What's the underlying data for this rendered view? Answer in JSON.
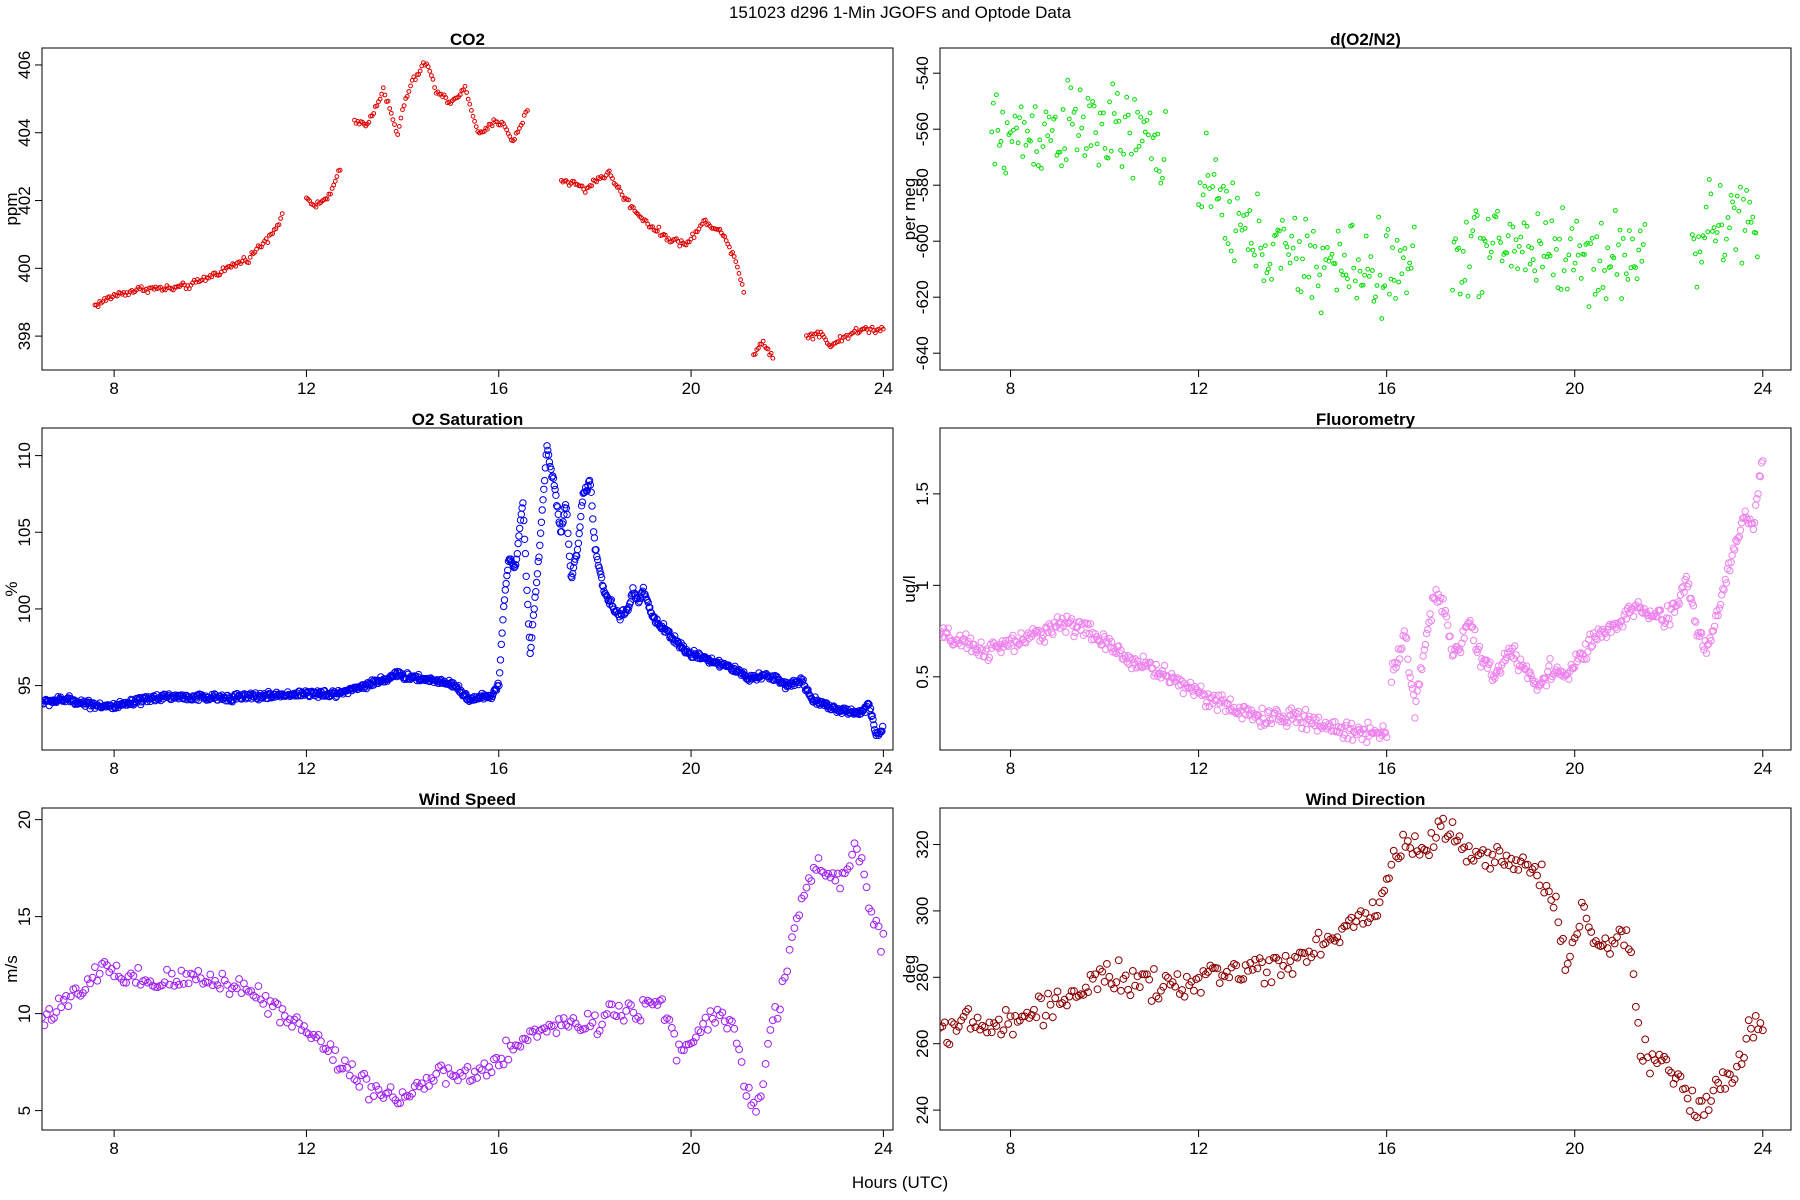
{
  "figure": {
    "title": "151023   d296   1-Min  JGOFS and Optode Data",
    "xlabel": "Hours (UTC)"
  },
  "chart_data": [
    {
      "type": "scatter",
      "title": "CO2",
      "ylabel": "ppm",
      "color": "#dd0000",
      "xlim": [
        6.5,
        24.2
      ],
      "ylim": [
        397.0,
        406.5
      ],
      "xticks": [
        8,
        12,
        16,
        20,
        24
      ],
      "yticks": [
        398,
        400,
        402,
        404,
        406
      ],
      "markerSize": 1.9,
      "noise": 0.05,
      "step": 0.0333,
      "segments": [
        {
          "x": [
            7.6,
            8.0,
            8.6,
            9.2,
            9.6,
            10.2,
            10.8,
            11.2,
            11.5
          ],
          "y": [
            398.9,
            399.2,
            399.4,
            399.4,
            399.5,
            399.9,
            400.3,
            400.9,
            401.5
          ]
        },
        {
          "x": [
            12.0,
            12.2,
            12.5,
            12.7
          ],
          "y": [
            402.1,
            401.8,
            402.2,
            402.9
          ]
        },
        {
          "x": [
            13.0,
            13.3,
            13.6,
            13.9,
            14.0,
            14.2,
            14.5,
            14.7,
            15.0,
            15.3,
            15.6,
            15.9,
            16.1,
            16.3,
            16.6
          ],
          "y": [
            404.3,
            404.3,
            405.3,
            403.9,
            404.7,
            405.5,
            406.1,
            405.2,
            404.9,
            405.3,
            403.9,
            404.3,
            404.3,
            403.7,
            404.7
          ]
        },
        {
          "x": [
            17.3,
            17.6,
            17.8,
            18.0,
            18.3,
            18.6,
            18.9,
            19.2,
            19.5,
            19.9,
            20.3,
            20.6,
            20.9,
            21.1
          ],
          "y": [
            402.6,
            402.5,
            402.3,
            402.6,
            402.8,
            402.1,
            401.6,
            401.2,
            400.9,
            400.7,
            401.4,
            401.1,
            400.4,
            399.3
          ]
        },
        {
          "x": [
            21.3,
            21.5,
            21.7
          ],
          "y": [
            397.5,
            397.8,
            397.4
          ]
        },
        {
          "x": [
            22.4,
            22.7,
            22.9,
            23.2,
            23.6,
            24.0
          ],
          "y": [
            398.0,
            398.1,
            397.7,
            398.0,
            398.2,
            398.2
          ]
        }
      ]
    },
    {
      "type": "scatter",
      "title": "d(O2/N2)",
      "ylabel": "per meg",
      "color": "#00dd00",
      "xlim": [
        6.5,
        24.6
      ],
      "ylim": [
        -646,
        -531
      ],
      "xticks": [
        8,
        12,
        16,
        20,
        24
      ],
      "yticks": [
        -540,
        -560,
        -580,
        -600,
        -620,
        -640
      ],
      "markerSize": 1.9,
      "noise": 8,
      "step": 0.033,
      "segments": [
        {
          "x": [
            7.6,
            8.5,
            9.5,
            10.4,
            11.3
          ],
          "y": [
            -563,
            -561,
            -559,
            -562,
            -566
          ]
        },
        {
          "x": [
            12.0,
            12.5,
            13.0,
            14.0,
            15.0,
            16.0,
            16.6
          ],
          "y": [
            -580,
            -587,
            -598,
            -606,
            -609,
            -610,
            -611
          ]
        },
        {
          "x": [
            17.4,
            18.5,
            19.5,
            20.5,
            21.5
          ],
          "y": [
            -604,
            -601,
            -603,
            -607,
            -604
          ]
        },
        {
          "x": [
            22.5,
            23.0,
            23.5,
            23.9
          ],
          "y": [
            -600,
            -595,
            -591,
            -598
          ]
        }
      ]
    },
    {
      "type": "scatter",
      "title": "O2 Saturation",
      "ylabel": "%",
      "color": "#0000ee",
      "xlim": [
        6.5,
        24.2
      ],
      "ylim": [
        90.8,
        111.8
      ],
      "xticks": [
        8,
        12,
        16,
        20,
        24
      ],
      "yticks": [
        95,
        100,
        105,
        110
      ],
      "markerSize": 3.2,
      "noise": 0.12,
      "step": 0.0167,
      "segments": [
        {
          "x": [
            6.5,
            7.0,
            7.5,
            8.0,
            9.0,
            10.0,
            11.0,
            12.0,
            12.5,
            13.0,
            13.5,
            13.9,
            14.5,
            15.0,
            15.4,
            15.8,
            16.0,
            16.1,
            16.2,
            16.35,
            16.5,
            16.65,
            16.85,
            17.0,
            17.1,
            17.3,
            17.4,
            17.5,
            17.65,
            17.75,
            17.9,
            18.0,
            18.2,
            18.5,
            18.7,
            18.8,
            18.9,
            19.0,
            19.2,
            19.5,
            19.9,
            20.3,
            20.8,
            21.2,
            21.6,
            22.0,
            22.3,
            22.5,
            22.8,
            23.2,
            23.5,
            23.7,
            23.85,
            24.0
          ],
          "y": [
            93.9,
            94.1,
            93.8,
            93.6,
            94.3,
            94.2,
            94.3,
            94.5,
            94.4,
            94.8,
            95.3,
            95.7,
            95.4,
            95.2,
            94.1,
            94.3,
            95.0,
            100.0,
            103.2,
            102.8,
            107.0,
            97.0,
            104.0,
            110.5,
            109.0,
            105.0,
            107.0,
            102.0,
            104.0,
            107.5,
            108.3,
            104.0,
            101.0,
            99.5,
            100.0,
            101.3,
            100.3,
            101.3,
            99.5,
            98.5,
            97.2,
            96.8,
            96.2,
            95.5,
            95.7,
            95.0,
            95.4,
            94.2,
            93.7,
            93.3,
            93.2,
            93.8,
            91.8,
            92.2
          ]
        }
      ]
    },
    {
      "type": "scatter",
      "title": "Fluorometry",
      "ylabel": "ug/l",
      "color": "#ee82ee",
      "xlim": [
        6.5,
        24.6
      ],
      "ylim": [
        0.1,
        1.86
      ],
      "xticks": [
        8,
        12,
        16,
        20,
        24
      ],
      "yticks": [
        0.5,
        1.0,
        1.5
      ],
      "markerSize": 3.2,
      "noise": 0.025,
      "step": 0.025,
      "segments": [
        {
          "x": [
            6.5,
            7.0,
            7.5,
            8.0,
            8.5,
            9.0,
            9.5,
            10.0,
            10.5,
            11.0,
            11.5,
            12.0,
            12.5,
            13.0,
            13.5,
            14.0,
            14.5,
            15.0,
            15.5,
            16.0
          ],
          "y": [
            0.73,
            0.68,
            0.64,
            0.68,
            0.72,
            0.79,
            0.78,
            0.68,
            0.6,
            0.55,
            0.48,
            0.42,
            0.35,
            0.3,
            0.27,
            0.28,
            0.25,
            0.21,
            0.2,
            0.2
          ]
        },
        {
          "x": [
            16.1,
            16.4,
            16.6,
            16.8,
            17.0,
            17.2,
            17.4,
            17.6,
            17.8,
            18.0,
            18.3,
            18.6,
            18.9,
            19.2,
            19.5,
            19.8,
            20.1,
            20.4,
            20.7,
            21.0,
            21.3,
            21.6,
            21.9,
            22.2,
            22.4,
            22.6,
            22.8,
            23.0,
            23.2,
            23.4,
            23.6,
            23.8,
            24.0
          ],
          "y": [
            0.5,
            0.75,
            0.3,
            0.65,
            0.95,
            0.9,
            0.6,
            0.7,
            0.8,
            0.6,
            0.5,
            0.65,
            0.55,
            0.45,
            0.55,
            0.5,
            0.6,
            0.7,
            0.75,
            0.8,
            0.88,
            0.85,
            0.8,
            0.9,
            1.05,
            0.75,
            0.65,
            0.8,
            1.0,
            1.2,
            1.4,
            1.3,
            1.7
          ]
        }
      ]
    },
    {
      "type": "scatter",
      "title": "Wind Speed",
      "ylabel": "m/s",
      "color": "#a020f0",
      "xlim": [
        6.5,
        24.2
      ],
      "ylim": [
        4.0,
        20.6
      ],
      "xticks": [
        8,
        12,
        16,
        20,
        24
      ],
      "yticks": [
        5,
        10,
        15,
        20
      ],
      "markerSize": 3.4,
      "noise": 0.3,
      "step": 0.05,
      "segments": [
        {
          "x": [
            6.5,
            7.0,
            7.5,
            7.8,
            8.2,
            8.6,
            9.0,
            9.5,
            10.0,
            10.5,
            11.0,
            11.5,
            12.0,
            12.5,
            13.0,
            13.5,
            14.0,
            14.5,
            15.0,
            15.5,
            16.0,
            16.5,
            17.0,
            17.5,
            18.0,
            18.5,
            19.0,
            19.4,
            19.7,
            20.0,
            20.3,
            20.6,
            20.9,
            21.1,
            21.3,
            21.5,
            21.7,
            21.9,
            22.1,
            22.3,
            22.6,
            22.9,
            23.2,
            23.5,
            23.7,
            24.0
          ],
          "y": [
            9.8,
            10.5,
            11.5,
            12.6,
            11.6,
            11.6,
            11.6,
            11.8,
            11.8,
            11.5,
            11.0,
            10.0,
            9.2,
            8.0,
            6.8,
            6.0,
            5.7,
            6.5,
            6.8,
            6.8,
            7.5,
            8.5,
            9.5,
            9.4,
            9.6,
            10.2,
            10.3,
            10.8,
            8.0,
            8.3,
            9.5,
            10.0,
            9.0,
            6.5,
            5.0,
            7.0,
            9.5,
            11.0,
            14.5,
            15.5,
            17.5,
            17.0,
            17.3,
            18.5,
            15.5,
            13.5
          ]
        }
      ]
    },
    {
      "type": "scatter",
      "title": "Wind Direction",
      "ylabel": "deg",
      "color": "#8b0000",
      "xlim": [
        6.5,
        24.6
      ],
      "ylim": [
        234,
        331
      ],
      "xticks": [
        8,
        12,
        16,
        20,
        24
      ],
      "yticks": [
        240,
        260,
        280,
        300,
        320
      ],
      "markerSize": 3.4,
      "noise": 2.2,
      "step": 0.05,
      "segments": [
        {
          "x": [
            6.5,
            7.0,
            7.5,
            8.0,
            8.5,
            9.0,
            9.5,
            10.0,
            10.5,
            11.0,
            11.5,
            12.0,
            12.5,
            13.0,
            13.5,
            14.0,
            14.5,
            15.0,
            15.5,
            15.9,
            16.0,
            16.3,
            16.6,
            16.9,
            17.2,
            17.5,
            17.8,
            18.1,
            18.4,
            18.7,
            19.0,
            19.3,
            19.6,
            19.8,
            20.0,
            20.2,
            20.4,
            20.7,
            21.0,
            21.2,
            21.4,
            21.6,
            21.9,
            22.2,
            22.5,
            22.8,
            23.0,
            23.3,
            23.5,
            23.7,
            24.0
          ],
          "y": [
            265,
            266,
            265,
            266,
            269,
            273,
            276,
            280,
            279,
            277,
            277,
            279,
            281,
            283,
            283,
            285,
            290,
            293,
            297,
            303,
            312,
            318,
            321,
            319,
            326,
            322,
            319,
            316,
            316,
            314,
            313,
            309,
            302,
            284,
            290,
            302,
            290,
            288,
            295,
            285,
            258,
            255,
            255,
            250,
            243,
            240,
            248,
            251,
            252,
            266,
            263
          ]
        }
      ]
    }
  ]
}
